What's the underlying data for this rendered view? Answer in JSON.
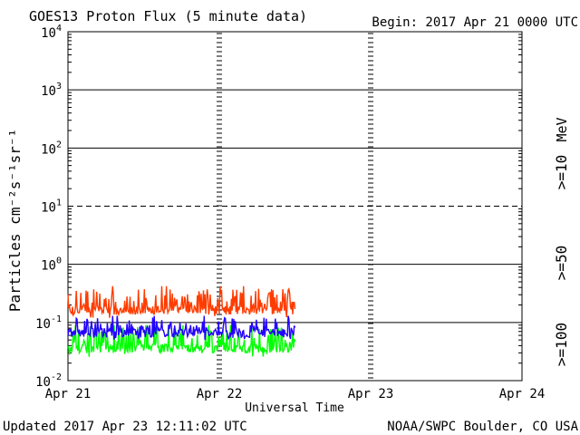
{
  "header": {
    "title": "GOES13 Proton Flux (5 minute data)",
    "begin": "Begin: 2017 Apr 21 0000 UTC"
  },
  "footer": {
    "updated": "Updated 2017 Apr 23 12:11:02 UTC",
    "credit": "NOAA/SWPC Boulder, CO USA"
  },
  "colors": {
    "ge10": "#ff3c00",
    "ge50": "#2200ff",
    "ge100": "#00ff00",
    "axis": "#000000"
  },
  "chart_data": {
    "type": "line",
    "title": "GOES13 Proton Flux (5 minute data)",
    "xlabel": "Universal Time",
    "ylabel": "Particles cm⁻²s⁻¹sr⁻¹",
    "yscale": "log",
    "ylim": [
      0.01,
      10000
    ],
    "ytick_exponents": [
      4,
      3,
      2,
      1,
      0,
      -1,
      -2
    ],
    "ytick_base": "10",
    "xlim_days": [
      0,
      3
    ],
    "xtick_labels": [
      "Apr 21",
      "Apr 22",
      "Apr 23",
      "Apr 24"
    ],
    "data_end_day": 1.5,
    "grid": true,
    "dashed_gridline_exponent": 1,
    "legend_placement": "right",
    "legend_unit": "MeV",
    "series": [
      {
        "name": ">=10",
        "color": "#ff3c00",
        "typical": 0.16,
        "range": [
          0.12,
          0.42
        ]
      },
      {
        "name": ">=50",
        "color": "#2200ff",
        "typical": 0.065,
        "range": [
          0.05,
          0.13
        ]
      },
      {
        "name": ">=100",
        "color": "#00ff00",
        "typical": 0.035,
        "range": [
          0.025,
          0.09
        ]
      }
    ]
  }
}
